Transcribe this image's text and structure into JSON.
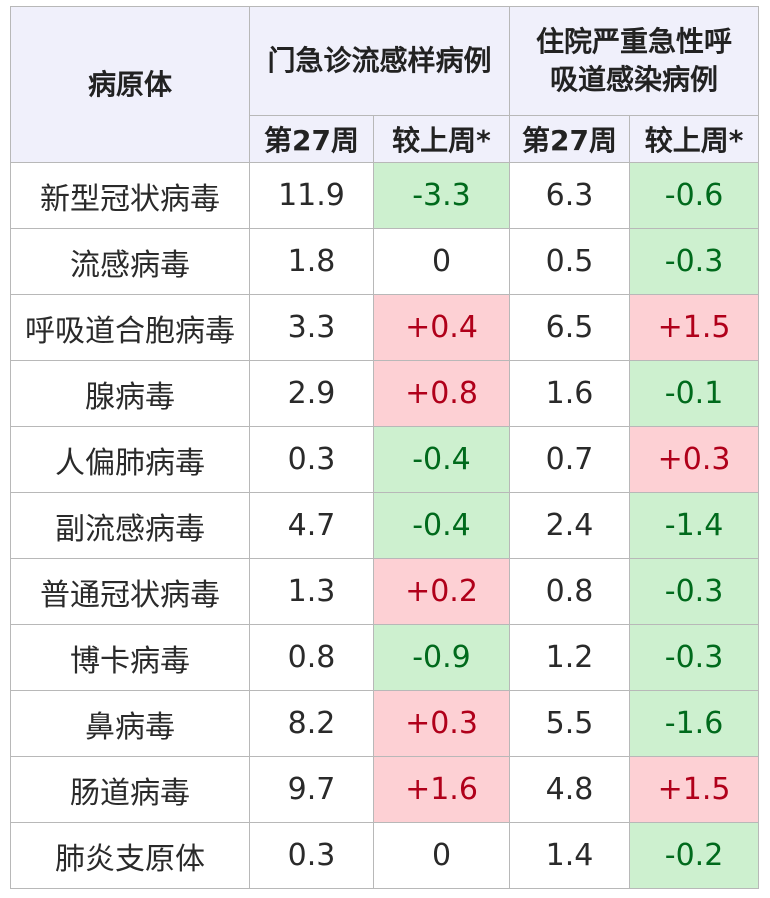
{
  "header": {
    "pathogen": "病原体",
    "group1": "门急诊流感样病例",
    "group2_line1": "住院严重急性呼",
    "group2_line2": "吸道感染病例",
    "week": "第27周",
    "change": "较上周*"
  },
  "rows": [
    {
      "name": "新型冠状病毒",
      "op_week": "11.9",
      "op_change": "-3.3",
      "op_dir": "neg",
      "ip_week": "6.3",
      "ip_change": "-0.6",
      "ip_dir": "neg"
    },
    {
      "name": "流感病毒",
      "op_week": "1.8",
      "op_change": "0",
      "op_dir": "zero",
      "ip_week": "0.5",
      "ip_change": "-0.3",
      "ip_dir": "neg"
    },
    {
      "name": "呼吸道合胞病毒",
      "op_week": "3.3",
      "op_change": "+0.4",
      "op_dir": "pos",
      "ip_week": "6.5",
      "ip_change": "+1.5",
      "ip_dir": "pos"
    },
    {
      "name": "腺病毒",
      "op_week": "2.9",
      "op_change": "+0.8",
      "op_dir": "pos",
      "ip_week": "1.6",
      "ip_change": "-0.1",
      "ip_dir": "neg"
    },
    {
      "name": "人偏肺病毒",
      "op_week": "0.3",
      "op_change": "-0.4",
      "op_dir": "neg",
      "ip_week": "0.7",
      "ip_change": "+0.3",
      "ip_dir": "pos"
    },
    {
      "name": "副流感病毒",
      "op_week": "4.7",
      "op_change": "-0.4",
      "op_dir": "neg",
      "ip_week": "2.4",
      "ip_change": "-1.4",
      "ip_dir": "neg"
    },
    {
      "name": "普通冠状病毒",
      "op_week": "1.3",
      "op_change": "+0.2",
      "op_dir": "pos",
      "ip_week": "0.8",
      "ip_change": "-0.3",
      "ip_dir": "neg"
    },
    {
      "name": "博卡病毒",
      "op_week": "0.8",
      "op_change": "-0.9",
      "op_dir": "neg",
      "ip_week": "1.2",
      "ip_change": "-0.3",
      "ip_dir": "neg"
    },
    {
      "name": "鼻病毒",
      "op_week": "8.2",
      "op_change": "+0.3",
      "op_dir": "pos",
      "ip_week": "5.5",
      "ip_change": "-1.6",
      "ip_dir": "neg"
    },
    {
      "name": "肠道病毒",
      "op_week": "9.7",
      "op_change": "+1.6",
      "op_dir": "pos",
      "ip_week": "4.8",
      "ip_change": "+1.5",
      "ip_dir": "pos"
    },
    {
      "name": "肺炎支原体",
      "op_week": "0.3",
      "op_change": "0",
      "op_dir": "zero",
      "ip_week": "1.4",
      "ip_change": "-0.2",
      "ip_dir": "neg"
    }
  ],
  "colors": {
    "increase_bg": "#fdd0d4",
    "increase_text": "#b0001a",
    "decrease_bg": "#cdf0cf",
    "decrease_text": "#006a1c",
    "header_bg": "#f0f0fb"
  }
}
